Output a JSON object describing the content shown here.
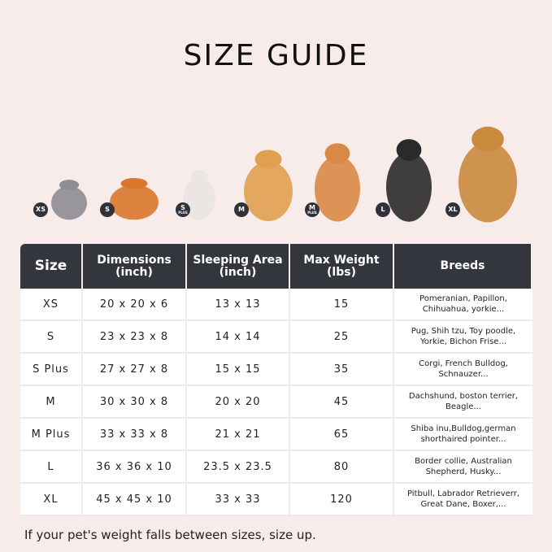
{
  "title": "SIZE GUIDE",
  "pets": [
    {
      "badge": "XS",
      "sub": "",
      "animal": "cat",
      "color": "#8d8d92"
    },
    {
      "badge": "S",
      "sub": "",
      "animal": "pomeranian",
      "color": "#d9782c"
    },
    {
      "badge": "S",
      "sub": "PLUS",
      "animal": "french-bulldog",
      "color": "#e9e6e3"
    },
    {
      "badge": "M",
      "sub": "",
      "animal": "corgi",
      "color": "#e0a050"
    },
    {
      "badge": "M",
      "sub": "PLUS",
      "animal": "shiba-inu",
      "color": "#d88a45"
    },
    {
      "badge": "L",
      "sub": "",
      "animal": "border-collie",
      "color": "#2a2a2a"
    },
    {
      "badge": "XL",
      "sub": "",
      "animal": "golden-retriever",
      "color": "#c98b3e"
    }
  ],
  "table": {
    "headers": [
      "Size",
      "Dimensions\n(inch)",
      "Sleeping Area\n(inch)",
      "Max Weight\n(lbs)",
      "Breeds"
    ],
    "rows": [
      [
        "XS",
        "20 x 20 x 6",
        "13 x 13",
        "15",
        "Pomeranian, Papillon, Chihuahua, yorkie..."
      ],
      [
        "S",
        "23 x 23 x 8",
        "14 x 14",
        "25",
        "Pug, Shih tzu, Toy poodle, Yorkie, Bichon Frise..."
      ],
      [
        "S Plus",
        "27 x 27 x 8",
        "15 x 15",
        "35",
        "Corgi, French Bulldog, Schnauzer..."
      ],
      [
        "M",
        "30 x 30 x 8",
        "20 x 20",
        "45",
        "Dachshund, boston terrier, Beagle..."
      ],
      [
        "M Plus",
        "33 x 33 x 8",
        "21 x 21",
        "65",
        "Shiba inu,Bulldog,german shorthaired pointer..."
      ],
      [
        "L",
        "36 x 36 x 10",
        "23.5 x 23.5",
        "80",
        "Border collie, Australian Shepherd, Husky..."
      ],
      [
        "XL",
        "45 x 45 x 10",
        "33 x 33",
        "120",
        "Pitbull, Labrador Retrieverr, Great Dane, Boxer,..."
      ]
    ]
  },
  "note": "If your pet's weight falls between sizes, size up.",
  "colors": {
    "background": "#f8ecea",
    "header": "#33363d",
    "cell": "#ffffff"
  }
}
